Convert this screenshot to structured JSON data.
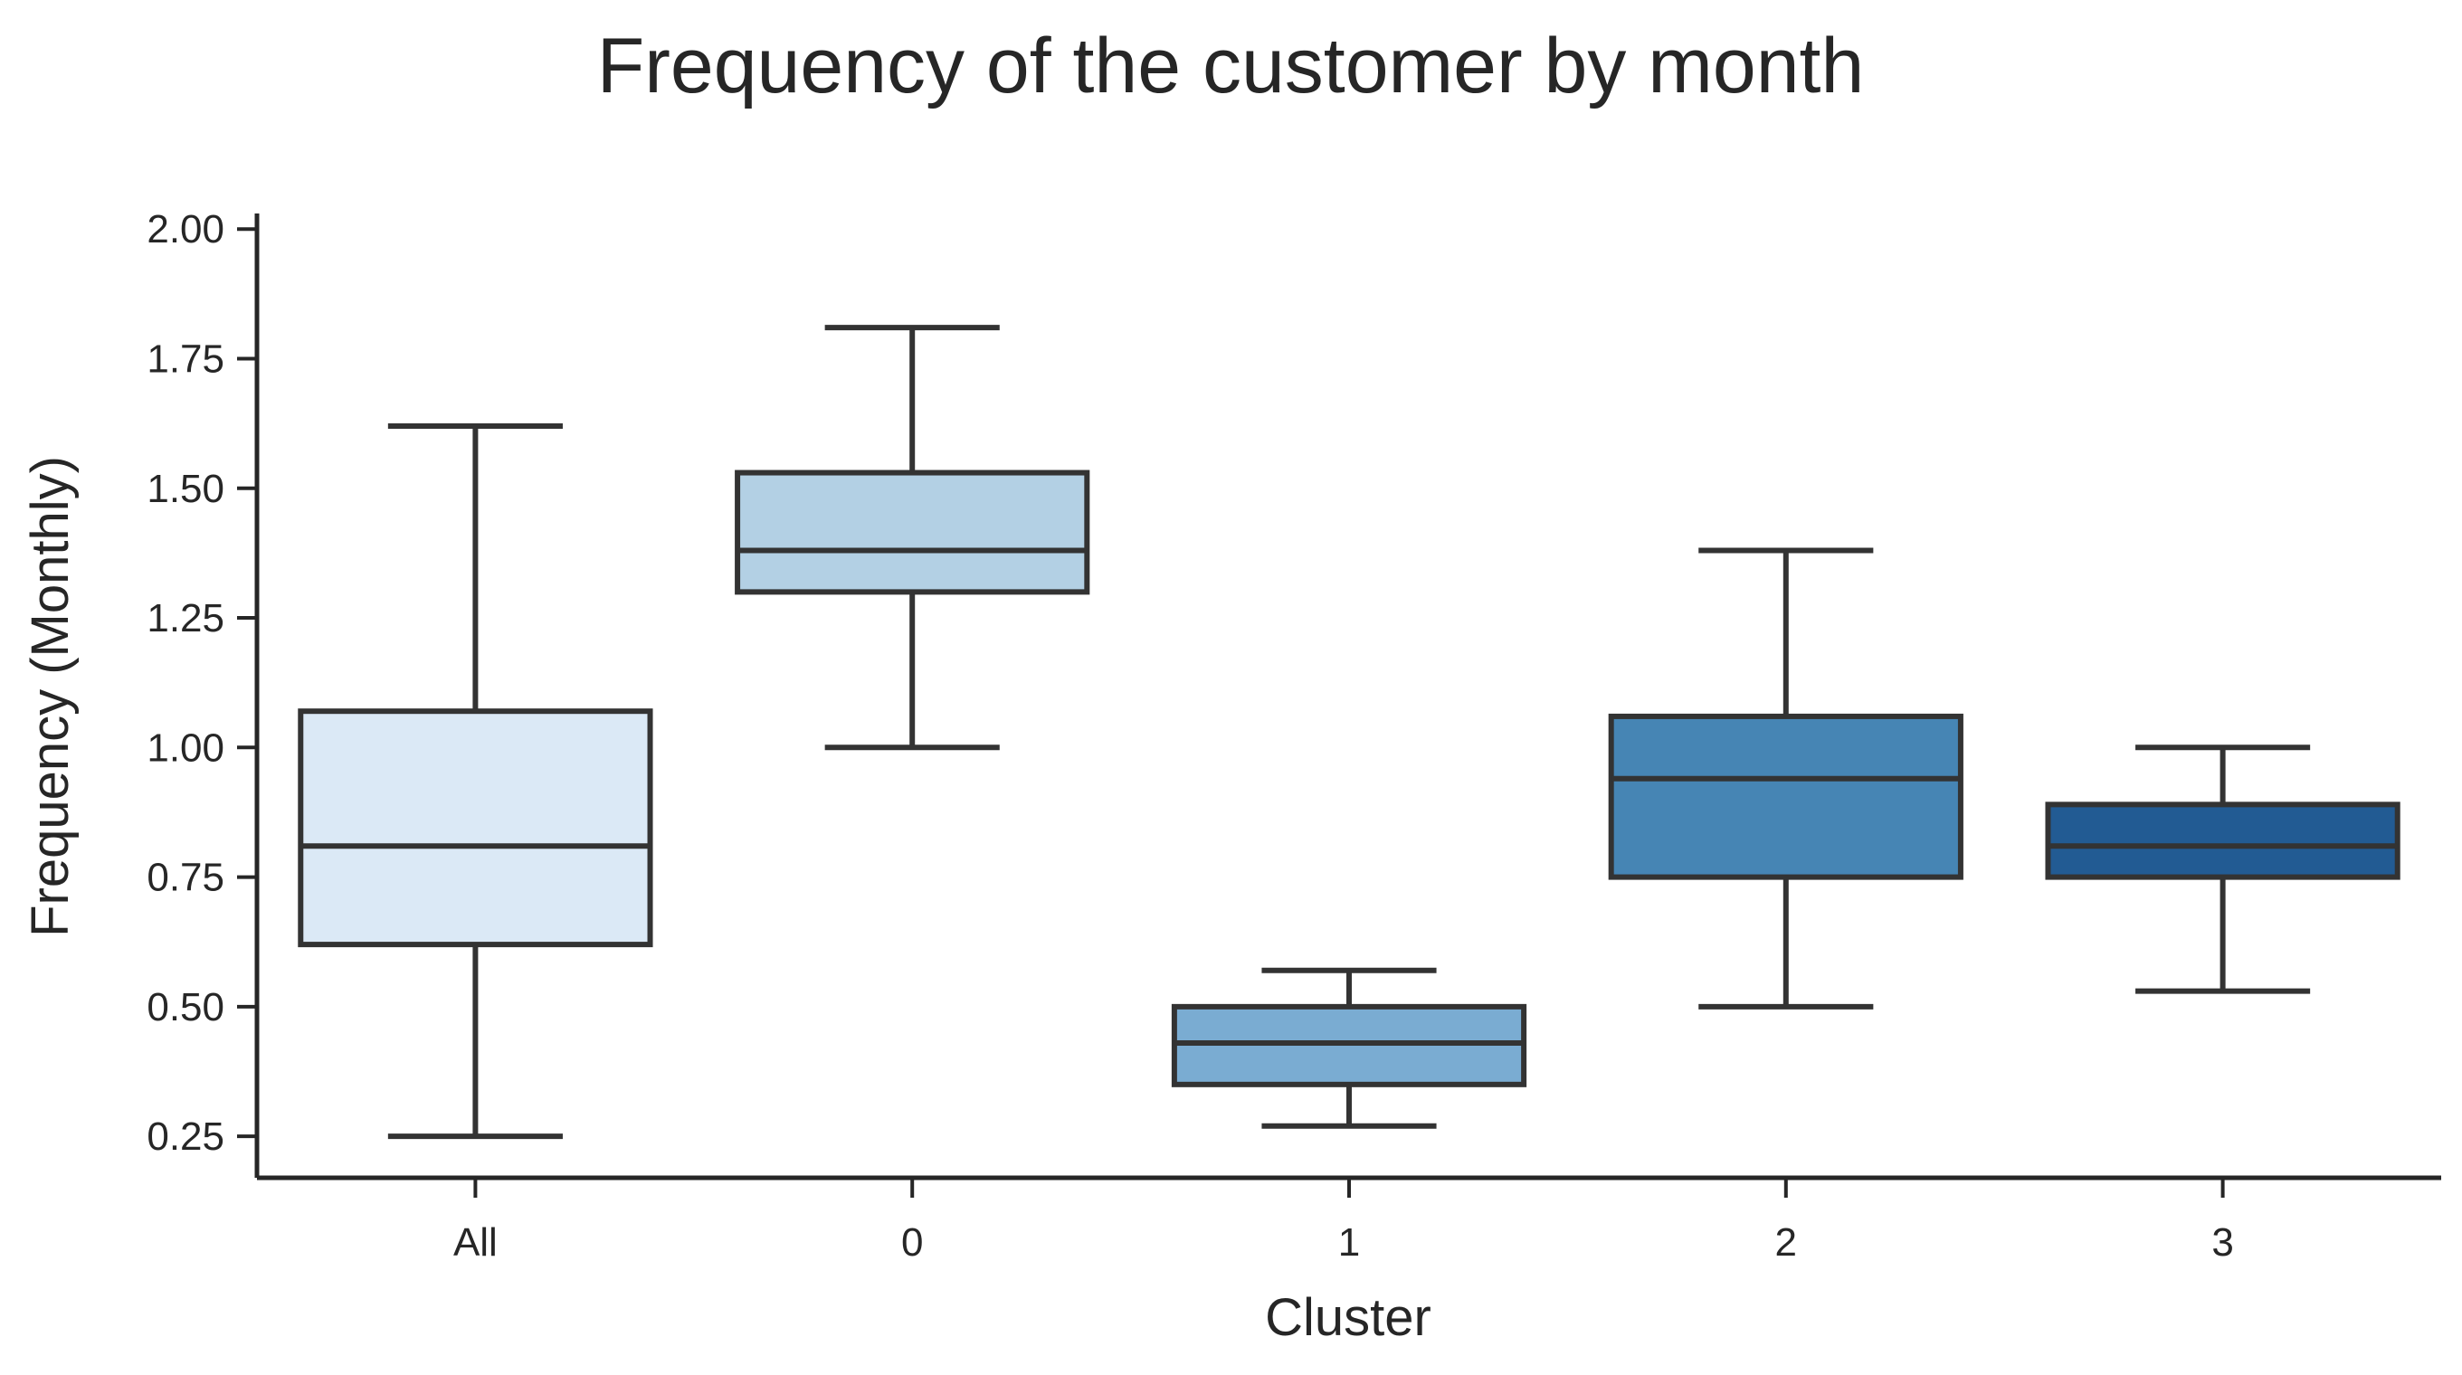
{
  "chart_data": {
    "type": "box",
    "title": "Frequency of the customer by month",
    "xlabel": "Cluster",
    "ylabel": "Frequency (Monthly)",
    "ylim": [
      0.17,
      2.03
    ],
    "yticks": [
      0.25,
      0.5,
      0.75,
      1.0,
      1.25,
      1.5,
      1.75,
      2.0
    ],
    "ytick_labels": [
      "0.25",
      "0.50",
      "0.75",
      "1.00",
      "1.25",
      "1.50",
      "1.75",
      "2.00"
    ],
    "categories": [
      "All",
      "0",
      "1",
      "2",
      "3"
    ],
    "boxes": [
      {
        "category": "All",
        "whisker_low": 0.25,
        "q1": 0.62,
        "median": 0.81,
        "q3": 1.07,
        "whisker_high": 1.62,
        "color": "#dbe9f6"
      },
      {
        "category": "0",
        "whisker_low": 1.0,
        "q1": 1.3,
        "median": 1.38,
        "q3": 1.53,
        "whisker_high": 1.81,
        "color": "#b3d0e4"
      },
      {
        "category": "1",
        "whisker_low": 0.27,
        "q1": 0.35,
        "median": 0.43,
        "q3": 0.5,
        "whisker_high": 0.57,
        "color": "#7aacd2"
      },
      {
        "category": "2",
        "whisker_low": 0.5,
        "q1": 0.75,
        "median": 0.94,
        "q3": 1.06,
        "whisker_high": 1.38,
        "color": "#4685b4"
      },
      {
        "category": "3",
        "whisker_low": 0.53,
        "q1": 0.75,
        "median": 0.81,
        "q3": 0.89,
        "whisker_high": 1.0,
        "color": "#225b93"
      }
    ],
    "grid": false,
    "legend": "none"
  },
  "colors": {
    "line": "#333333",
    "text": "#262626",
    "axis": "#262626"
  }
}
